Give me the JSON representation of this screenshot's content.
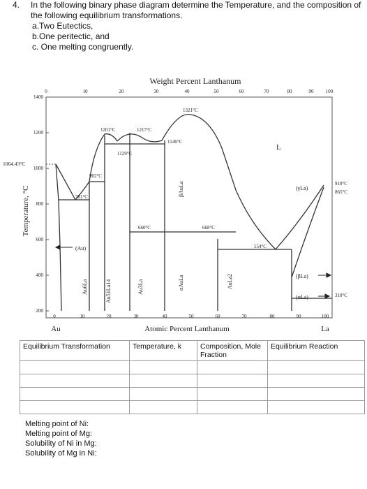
{
  "question": {
    "number": "4.",
    "prompt": "In the following binary phase diagram determine the Temperature, and the composition of the following equilibrium transformations.",
    "items": [
      "a.Two Eutectics,",
      "b.One peritectic, and",
      "c. One melting congruently."
    ]
  },
  "diagram": {
    "top_axis_title": "Weight Percent Lanthanum",
    "top_ticks": [
      "0",
      "10",
      "20",
      "30",
      "40",
      "50",
      "60",
      "70",
      "80",
      "90",
      "100"
    ],
    "bottom_ticks": [
      "0",
      "10",
      "20",
      "30",
      "40",
      "50",
      "60",
      "70",
      "80",
      "90",
      "100"
    ],
    "bottom_axis_title": "Atomic Percent Lanthanum",
    "y_axis_title": "Temperature, °C",
    "y_ticks": [
      "1400",
      "1200",
      "1000",
      "800",
      "600",
      "400",
      "200"
    ],
    "left_element": "Au",
    "right_element": "La",
    "temperature_labels": {
      "au_melt": "1064.43°C",
      "t1321": "1321°C",
      "t1217": "1217°C",
      "t1201": "1201°C",
      "t1146": "1146°C",
      "t1129": "1129°C",
      "t902": "902°C",
      "t781": "781°C",
      "t660": "660°C",
      "t668": "668°C",
      "t554": "554°C",
      "t918": "918°C",
      "t865": "865°C",
      "t310": "310°C"
    },
    "phase_labels": {
      "liquid": "L",
      "au_solid": "(Au)",
      "gamma_la": "(γLa)",
      "beta_la": "(βLa)",
      "alpha_la": "(αLa)",
      "au6la": "Au6La",
      "au51la14": "Au51La14",
      "au3la": "Au3La",
      "beta_aula": "βAuLa",
      "alpha_aula": "αAuLa",
      "aula2": "AuLa2"
    }
  },
  "table": {
    "headers": [
      "Equilibrium Transformation",
      "Temperature, k",
      "Composition, Mole Fraction",
      "Equilibrium Reaction"
    ],
    "rows": [
      [
        "",
        "",
        "",
        ""
      ],
      [
        "",
        "",
        "",
        ""
      ],
      [
        "",
        "",
        "",
        ""
      ],
      [
        "",
        "",
        "",
        ""
      ]
    ]
  },
  "notes": [
    "Melting point of Ni:",
    "Melting point of Mg:",
    "Solubility of Ni in Mg:",
    "Solubility of Mg in Ni:"
  ]
}
